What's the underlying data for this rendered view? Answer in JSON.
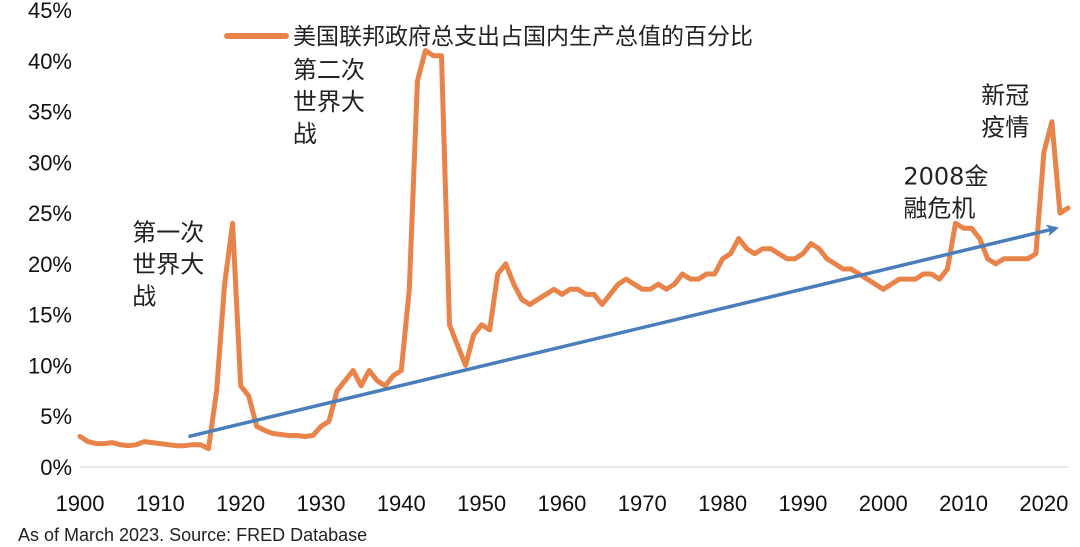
{
  "chart_data": {
    "type": "line",
    "title": "",
    "xlabel": "",
    "ylabel": "",
    "xlim": [
      1900,
      2023
    ],
    "ylim": [
      0,
      45
    ],
    "x_ticks": [
      "1900",
      "1910",
      "1920",
      "1930",
      "1940",
      "1950",
      "1960",
      "1970",
      "1980",
      "1990",
      "2000",
      "2010",
      "2020"
    ],
    "x_tick_values": [
      1900,
      1910,
      1920,
      1930,
      1940,
      1950,
      1960,
      1970,
      1980,
      1990,
      2000,
      2010,
      2020
    ],
    "y_ticks": [
      "0%",
      "5%",
      "10%",
      "15%",
      "20%",
      "25%",
      "30%",
      "35%",
      "40%",
      "45%"
    ],
    "y_tick_values": [
      0,
      5,
      10,
      15,
      20,
      25,
      30,
      35,
      40,
      45
    ],
    "grid": false,
    "legend": {
      "position": "top",
      "entries": [
        "美国联邦政府总支出占国内生产总值的百分比"
      ]
    },
    "series": [
      {
        "name": "美国联邦政府总支出占国内生产总值的百分比",
        "color": "#E8834A",
        "x": [
          1900,
          1901,
          1902,
          1903,
          1904,
          1905,
          1906,
          1907,
          1908,
          1909,
          1910,
          1911,
          1912,
          1913,
          1914,
          1915,
          1916,
          1917,
          1918,
          1919,
          1920,
          1921,
          1922,
          1923,
          1924,
          1925,
          1926,
          1927,
          1928,
          1929,
          1930,
          1931,
          1932,
          1933,
          1934,
          1935,
          1936,
          1937,
          1938,
          1939,
          1940,
          1941,
          1942,
          1943,
          1944,
          1945,
          1946,
          1947,
          1948,
          1949,
          1950,
          1951,
          1952,
          1953,
          1954,
          1955,
          1956,
          1957,
          1958,
          1959,
          1960,
          1961,
          1962,
          1963,
          1964,
          1965,
          1966,
          1967,
          1968,
          1969,
          1970,
          1971,
          1972,
          1973,
          1974,
          1975,
          1976,
          1977,
          1978,
          1979,
          1980,
          1981,
          1982,
          1983,
          1984,
          1985,
          1986,
          1987,
          1988,
          1989,
          1990,
          1991,
          1992,
          1993,
          1994,
          1995,
          1996,
          1997,
          1998,
          1999,
          2000,
          2001,
          2002,
          2003,
          2004,
          2005,
          2006,
          2007,
          2008,
          2009,
          2010,
          2011,
          2012,
          2013,
          2014,
          2015,
          2016,
          2017,
          2018,
          2019,
          2020,
          2021,
          2022,
          2023
        ],
        "values": [
          3.0,
          2.5,
          2.3,
          2.3,
          2.4,
          2.2,
          2.1,
          2.2,
          2.5,
          2.4,
          2.3,
          2.2,
          2.1,
          2.1,
          2.2,
          2.2,
          1.8,
          7.5,
          18.0,
          24.0,
          8.0,
          7.0,
          4.0,
          3.6,
          3.3,
          3.2,
          3.1,
          3.1,
          3.0,
          3.1,
          4.0,
          4.5,
          7.5,
          8.5,
          9.5,
          8.0,
          9.5,
          8.5,
          8.0,
          9.0,
          9.5,
          17.5,
          38.0,
          41.0,
          40.5,
          40.5,
          14.0,
          12.0,
          10.0,
          13.0,
          14.0,
          13.5,
          19.0,
          20.0,
          18.0,
          16.5,
          16.0,
          16.5,
          17.0,
          17.5,
          17.0,
          17.5,
          17.5,
          17.0,
          17.0,
          16.0,
          17.0,
          18.0,
          18.5,
          18.0,
          17.5,
          17.5,
          18.0,
          17.5,
          18.0,
          19.0,
          18.5,
          18.5,
          19.0,
          19.0,
          20.5,
          21.0,
          22.5,
          21.5,
          21.0,
          21.5,
          21.5,
          21.0,
          20.5,
          20.5,
          21.0,
          22.0,
          21.5,
          20.5,
          20.0,
          19.5,
          19.5,
          19.0,
          18.5,
          18.0,
          17.5,
          18.0,
          18.5,
          18.5,
          18.5,
          19.0,
          19.0,
          18.5,
          19.5,
          24.0,
          23.5,
          23.5,
          22.5,
          20.5,
          20.0,
          20.5,
          20.5,
          20.5,
          20.5,
          21.0,
          31.0,
          34.0,
          25.0,
          25.5
        ]
      }
    ],
    "trend_arrow": {
      "color": "#4A7EBB",
      "from": [
        1913.5,
        3.0
      ],
      "to": [
        2021.5,
        23.5
      ]
    },
    "annotations": [
      {
        "lines": [
          "第一次",
          "世界大",
          "战"
        ],
        "x": 1906.5,
        "y": 22.3
      },
      {
        "lines": [
          "第二次",
          "世界大",
          "战"
        ],
        "x": 1926.5,
        "y": 38.3
      },
      {
        "lines": [
          "2008金",
          "融危机"
        ],
        "x": 2002.5,
        "y": 27.8
      },
      {
        "lines": [
          "新冠",
          "疫情"
        ],
        "x": 2012.2,
        "y": 35.8
      }
    ],
    "source_note": "As of March 2023. Source: FRED Database"
  }
}
